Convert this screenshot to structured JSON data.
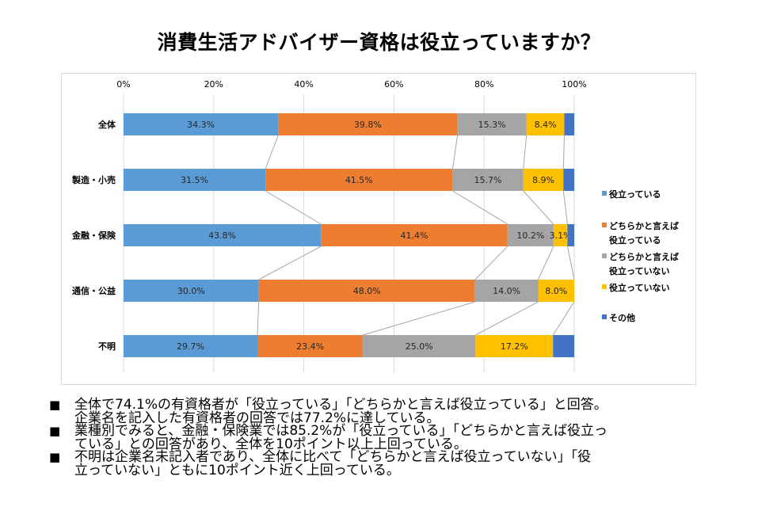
{
  "chart_data": {
    "type": "bar",
    "orientation": "horizontal",
    "stacked": "100%",
    "title": "消費生活アドバイザー資格は役立っていますか？",
    "xlabel": "",
    "ylabel": "",
    "xlim": [
      0,
      100
    ],
    "x_ticks": [
      "0%",
      "20%",
      "40%",
      "60%",
      "80%",
      "100%"
    ],
    "grid": true,
    "legend_position": "right",
    "series_lines": true,
    "categories": [
      "全体",
      "製造・小売",
      "金融・保険",
      "通信・公益",
      "不明"
    ],
    "series": [
      {
        "name": "役立っている",
        "color": "#5b9bd5",
        "values": [
          34.3,
          31.5,
          43.8,
          30.0,
          29.7
        ],
        "labels": [
          "34.3%",
          "31.5%",
          "43.8%",
          "30.0%",
          "29.7%"
        ]
      },
      {
        "name": "どちらかと言えば役立っている",
        "legend_lines": [
          "どちらかと言えば",
          "役立っている"
        ],
        "color": "#ed7d31",
        "values": [
          39.8,
          41.5,
          41.4,
          48.0,
          23.4
        ],
        "labels": [
          "39.8%",
          "41.5%",
          "41.4%",
          "48.0%",
          "23.4%"
        ]
      },
      {
        "name": "どちらかと言えば役立っていない",
        "legend_lines": [
          "どちらかと言えば",
          "役立っていない"
        ],
        "color": "#a5a5a5",
        "values": [
          15.3,
          15.7,
          10.2,
          14.0,
          25.0
        ],
        "labels": [
          "15.3%",
          "15.7%",
          "10.2%",
          "14.0%",
          "25.0%"
        ]
      },
      {
        "name": "役立っていない",
        "color": "#ffc000",
        "values": [
          8.4,
          8.9,
          3.1,
          8.0,
          17.2
        ],
        "labels": [
          "8.4%",
          "8.9%",
          "3.1%",
          "8.0%",
          "17.2%"
        ]
      },
      {
        "name": "その他",
        "color": "#4472c4",
        "values": [
          2.2,
          2.4,
          1.5,
          0.0,
          4.7
        ],
        "labels": [
          "",
          "",
          "",
          "",
          ""
        ]
      }
    ]
  },
  "notes": [
    {
      "bullet": "■",
      "lines": [
        "全体で74.1%の有資格者が「役立っている」「どちらかと言えば役立っている」と回答。",
        "企業名を記入した有資格者の回答では77.2%に達している。"
      ]
    },
    {
      "bullet": "■",
      "lines": [
        "業種別でみると、金融・保険業では85.2%が「役立っている」「どちらかと言えば役立っ",
        "ている」との回答があり、全体を10ポイント以上上回っている。"
      ]
    },
    {
      "bullet": "■",
      "lines": [
        "不明は企業名未記入者であり、全体に比べて「どちらかと言えば役立っていない」「役",
        "立っていない」ともに10ポイント近く上回っている。"
      ]
    }
  ]
}
